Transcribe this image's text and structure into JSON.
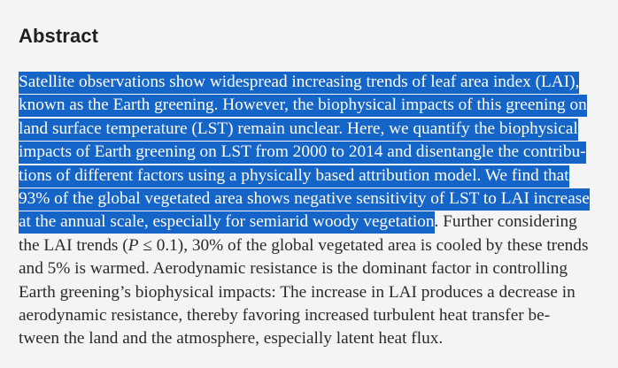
{
  "abstract": {
    "heading": "Abstract",
    "lines": [
      {
        "selected": "Satellite observations show widespread increasing trends of leaf area index (LAI),",
        "rest": ""
      },
      {
        "selected": "known as the Earth greening. However, the biophysical impacts of this greening on",
        "rest": ""
      },
      {
        "selected": "land surface temperature (LST) remain unclear. Here, we quantify the biophysical",
        "rest": ""
      },
      {
        "selected": "impacts of Earth greening on LST from 2000 to 2014 and disentangle the contribu-",
        "rest": ""
      },
      {
        "selected": "tions of different factors using a physically based attribution model. We find that",
        "rest": ""
      },
      {
        "selected": "93% of the global vegetated area shows negative sensitivity of LST to LAI increase",
        "rest": ""
      },
      {
        "selected": "at the annual scale, especially for semiarid woody vegetation",
        "rest": ". Further considering"
      },
      {
        "selected": "",
        "rest_a": "the LAI trends (",
        "italic": "P",
        "rest_b": " ≤ 0.1), 30% of the global vegetated area is cooled by these trends"
      },
      {
        "selected": "",
        "rest": "and 5% is warmed. Aerodynamic resistance is the dominant factor in controlling"
      },
      {
        "selected": "",
        "rest": "Earth greening’s biophysical impacts: The increase in LAI produces a decrease in"
      },
      {
        "selected": "",
        "rest": "aerodynamic resistance, thereby favoring increased turbulent heat transfer be-"
      },
      {
        "selected": "",
        "rest": "tween the land and the atmosphere, especially latent heat flux."
      }
    ]
  },
  "colors": {
    "selection": "#1565c8",
    "background": "#f4f4f4",
    "text": "#2a2a2a"
  }
}
